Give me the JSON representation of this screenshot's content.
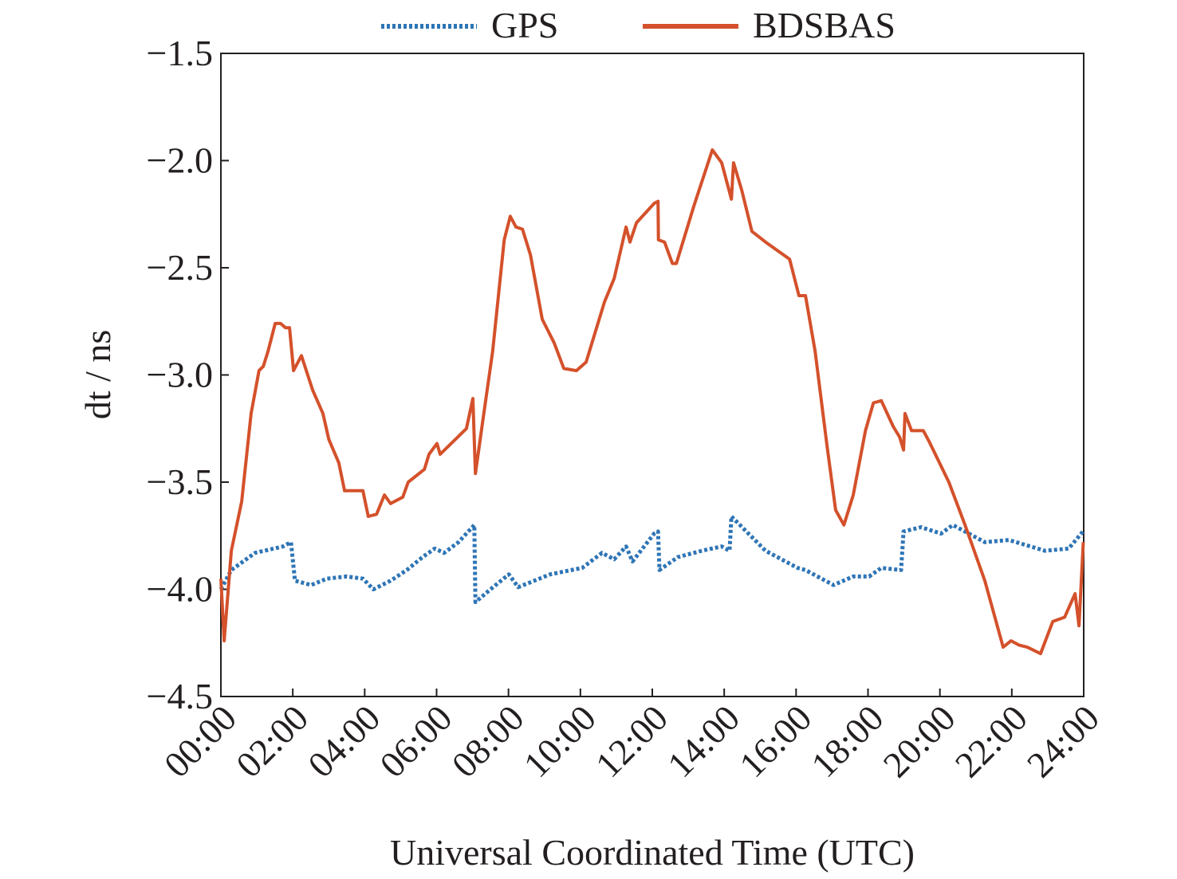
{
  "chart_data": {
    "type": "line",
    "x_label": "Universal Coordinated Time (UTC)",
    "y_label": "dt / ns",
    "xlim": [
      0,
      24
    ],
    "ylim": [
      -4.5,
      -1.5
    ],
    "xticks": [
      {
        "value": 0,
        "label": "00:00"
      },
      {
        "value": 2,
        "label": "02:00"
      },
      {
        "value": 4,
        "label": "04:00"
      },
      {
        "value": 6,
        "label": "06:00"
      },
      {
        "value": 8,
        "label": "08:00"
      },
      {
        "value": 10,
        "label": "10:00"
      },
      {
        "value": 12,
        "label": "12:00"
      },
      {
        "value": 14,
        "label": "14:00"
      },
      {
        "value": 16,
        "label": "16:00"
      },
      {
        "value": 18,
        "label": "18:00"
      },
      {
        "value": 20,
        "label": "20:00"
      },
      {
        "value": 22,
        "label": "22:00"
      },
      {
        "value": 24,
        "label": "24:00"
      }
    ],
    "yticks": [
      {
        "value": -1.5,
        "label": "−1.5"
      },
      {
        "value": -2.0,
        "label": "−2.0"
      },
      {
        "value": -2.5,
        "label": "−2.5"
      },
      {
        "value": -3.0,
        "label": "−3.0"
      },
      {
        "value": -3.5,
        "label": "−3.5"
      },
      {
        "value": -4.0,
        "label": "−4.0"
      },
      {
        "value": -4.5,
        "label": "−4.5"
      }
    ],
    "legend_position": "top",
    "series": [
      {
        "name": "GPS",
        "color": "#2e75b6",
        "style": "dotted",
        "x": [
          0,
          0.29,
          0.95,
          1.73,
          1.95,
          2.06,
          2.51,
          2.95,
          3.5,
          3.95,
          4.24,
          4.72,
          5.17,
          5.61,
          5.95,
          6.21,
          6.61,
          7.05,
          7.08,
          7.5,
          8.01,
          8.27,
          9.16,
          10.05,
          10.6,
          10.94,
          11.27,
          11.45,
          12.05,
          12.16,
          12.2,
          12.71,
          13.38,
          13.93,
          14.15,
          14.2,
          15.15,
          16.04,
          16.26,
          17.04,
          17.59,
          18.03,
          18.37,
          18.92,
          18.99,
          19.48,
          20.03,
          20.36,
          21.25,
          21.92,
          22.92,
          23.58,
          23.98
        ],
        "values": [
          -4.0,
          -3.91,
          -3.83,
          -3.8,
          -3.78,
          -3.96,
          -3.98,
          -3.95,
          -3.94,
          -3.95,
          -4.0,
          -3.96,
          -3.91,
          -3.85,
          -3.81,
          -3.83,
          -3.78,
          -3.7,
          -4.06,
          -4.0,
          -3.93,
          -3.99,
          -3.93,
          -3.9,
          -3.83,
          -3.86,
          -3.8,
          -3.87,
          -3.74,
          -3.73,
          -3.91,
          -3.85,
          -3.82,
          -3.8,
          -3.82,
          -3.66,
          -3.82,
          -3.9,
          -3.91,
          -3.98,
          -3.94,
          -3.94,
          -3.9,
          -3.91,
          -3.73,
          -3.71,
          -3.74,
          -3.7,
          -3.78,
          -3.77,
          -3.82,
          -3.81,
          -3.73
        ]
      },
      {
        "name": "BDSBAS",
        "color": "#d4512b",
        "style": "solid",
        "x": [
          0,
          0.09,
          0.29,
          0.58,
          0.84,
          1.06,
          1.18,
          1.31,
          1.51,
          1.66,
          1.8,
          1.91,
          2.02,
          2.24,
          2.55,
          2.84,
          3.0,
          3.28,
          3.44,
          3.95,
          4.1,
          4.33,
          4.55,
          4.72,
          5.06,
          5.21,
          5.66,
          5.79,
          6.01,
          6.1,
          6.83,
          7.01,
          7.08,
          7.28,
          7.56,
          7.88,
          8.05,
          8.21,
          8.39,
          8.61,
          8.94,
          9.27,
          9.54,
          9.89,
          10.16,
          10.67,
          10.94,
          11.27,
          11.38,
          11.56,
          12.05,
          12.16,
          12.17,
          12.34,
          12.56,
          12.67,
          13.16,
          13.67,
          13.93,
          14.2,
          14.26,
          14.49,
          14.77,
          15.15,
          15.82,
          16.08,
          16.26,
          16.53,
          16.86,
          17.1,
          17.33,
          17.59,
          17.93,
          18.15,
          18.37,
          18.7,
          18.88,
          18.99,
          19.03,
          19.21,
          19.32,
          19.54,
          19.7,
          20.25,
          20.7,
          21.25,
          21.76,
          21.98,
          22.2,
          22.43,
          22.8,
          23.14,
          23.47,
          23.76,
          23.87,
          23.99
        ],
        "values": [
          -3.95,
          -4.24,
          -3.82,
          -3.59,
          -3.18,
          -2.98,
          -2.96,
          -2.89,
          -2.76,
          -2.76,
          -2.78,
          -2.78,
          -2.98,
          -2.91,
          -3.07,
          -3.18,
          -3.3,
          -3.41,
          -3.54,
          -3.54,
          -3.66,
          -3.65,
          -3.56,
          -3.6,
          -3.57,
          -3.5,
          -3.44,
          -3.37,
          -3.32,
          -3.37,
          -3.25,
          -3.11,
          -3.46,
          -3.22,
          -2.89,
          -2.37,
          -2.26,
          -2.31,
          -2.32,
          -2.44,
          -2.74,
          -2.85,
          -2.97,
          -2.98,
          -2.94,
          -2.66,
          -2.55,
          -2.31,
          -2.38,
          -2.29,
          -2.2,
          -2.19,
          -2.37,
          -2.38,
          -2.48,
          -2.48,
          -2.21,
          -1.95,
          -2.01,
          -2.18,
          -2.01,
          -2.14,
          -2.33,
          -2.38,
          -2.46,
          -2.63,
          -2.63,
          -2.89,
          -3.33,
          -3.63,
          -3.7,
          -3.56,
          -3.26,
          -3.13,
          -3.12,
          -3.24,
          -3.29,
          -3.35,
          -3.18,
          -3.26,
          -3.26,
          -3.26,
          -3.31,
          -3.5,
          -3.7,
          -3.96,
          -4.27,
          -4.24,
          -4.26,
          -4.27,
          -4.3,
          -4.15,
          -4.13,
          -4.02,
          -4.17,
          -3.78
        ]
      }
    ]
  }
}
